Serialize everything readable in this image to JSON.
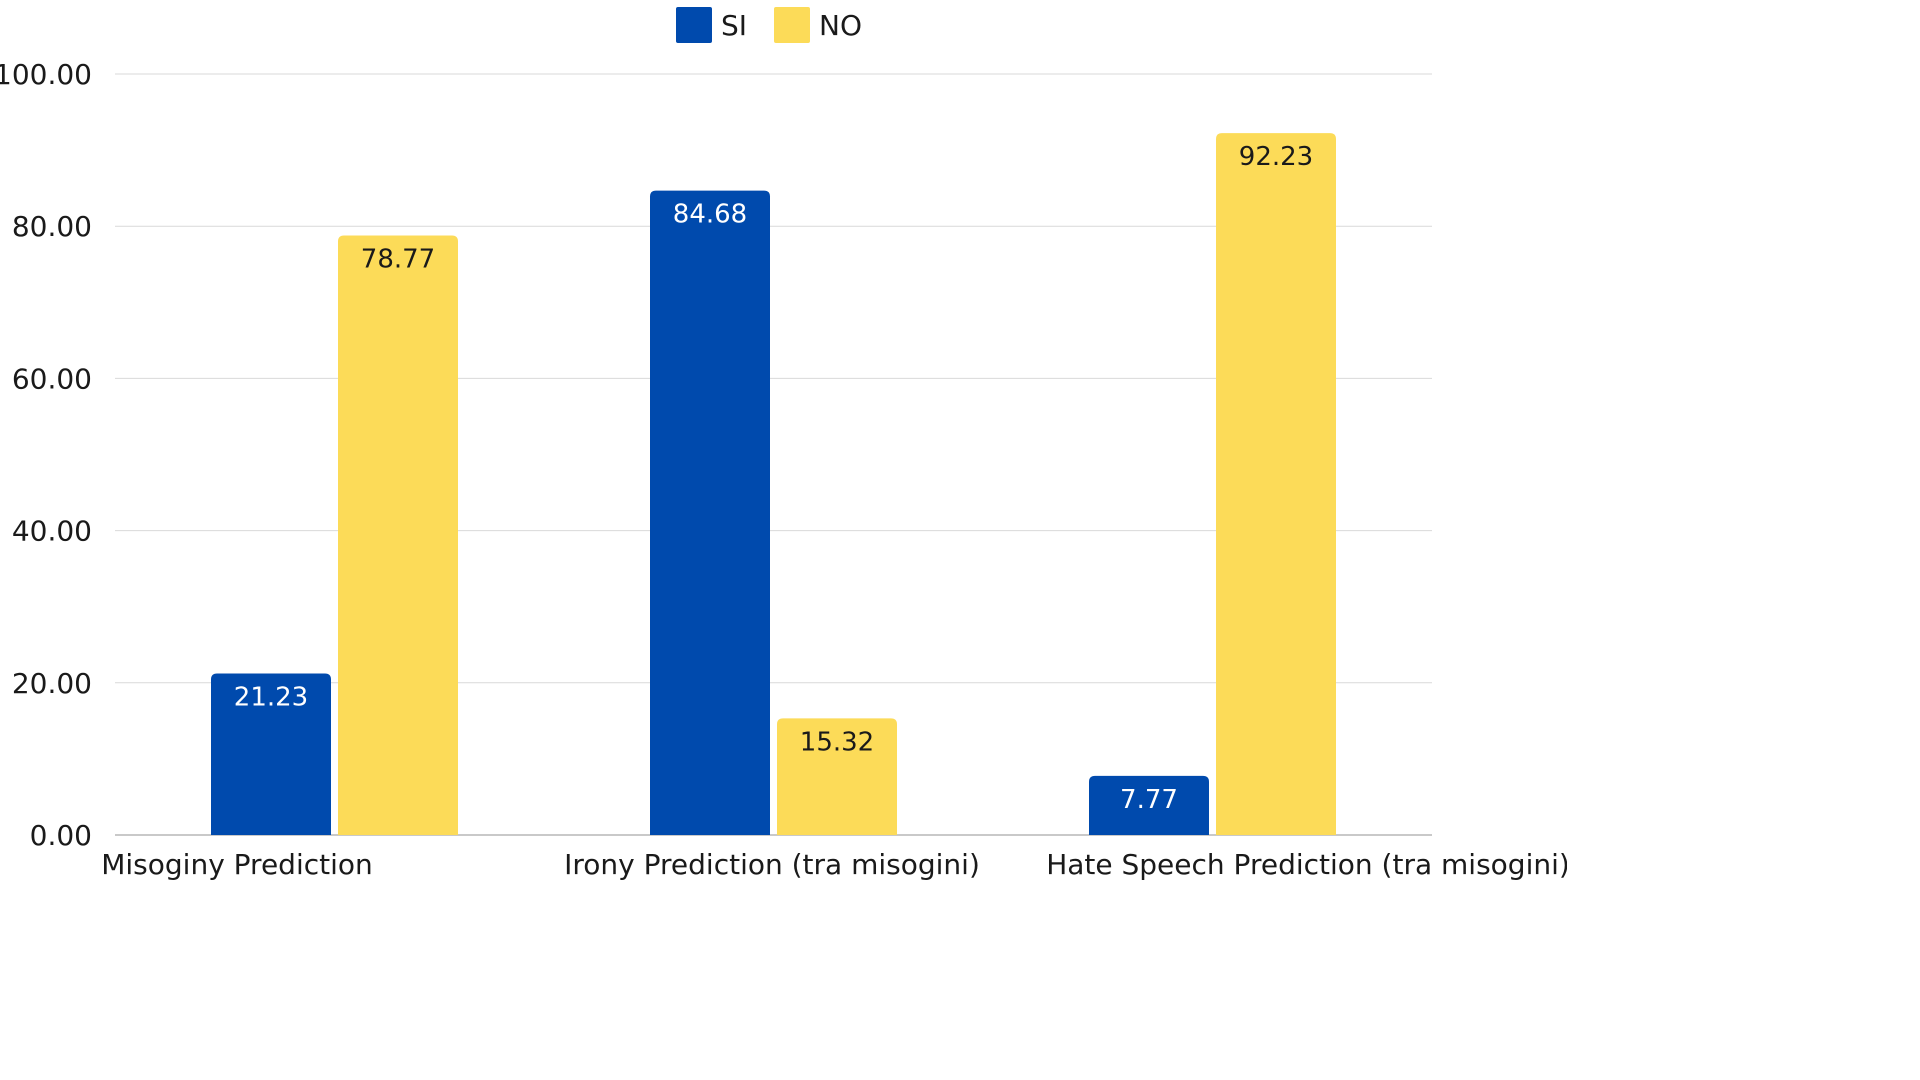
{
  "chart_data": {
    "type": "bar",
    "categories": [
      "Misoginy Prediction",
      "Irony Prediction (tra misogini)",
      "Hate Speech Prediction (tra misogini)"
    ],
    "series": [
      {
        "name": "SI",
        "values": [
          21.23,
          84.68,
          7.77
        ],
        "color": "#004aad",
        "label_color": "#ffffff"
      },
      {
        "name": "NO",
        "values": [
          78.77,
          15.32,
          92.23
        ],
        "color": "#fcdb58",
        "label_color": "#1a1a1a"
      }
    ],
    "value_labels": [
      [
        "21.23",
        "84.68",
        "7.77"
      ],
      [
        "78.77",
        "15.32",
        "92.23"
      ]
    ],
    "yticks": [
      "0.00",
      "20.00",
      "40.00",
      "60.00",
      "80.00",
      "100.00"
    ],
    "ylim": [
      0,
      100
    ],
    "legend_position": "top-center",
    "grid": true,
    "title": "",
    "xlabel": "",
    "ylabel": ""
  }
}
